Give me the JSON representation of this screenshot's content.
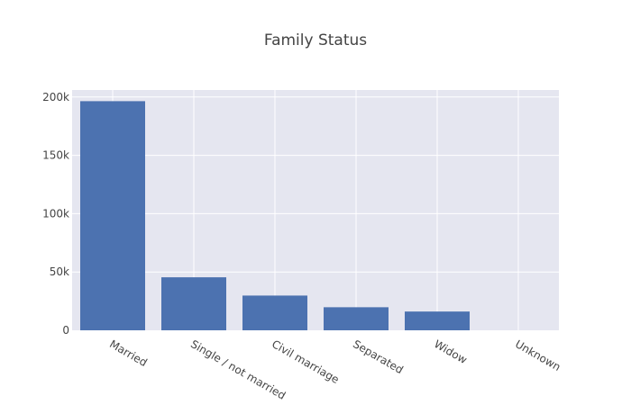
{
  "chart_data": {
    "type": "bar",
    "title": "Family Status",
    "xlabel": "",
    "ylabel": "",
    "categories": [
      "Married",
      "Single / not married",
      "Civil marriage",
      "Separated",
      "Widow",
      "Unknown"
    ],
    "values": [
      196432,
      45444,
      29775,
      19770,
      16088,
      2
    ],
    "ylim": [
      0,
      206000
    ],
    "yticks": [
      0,
      50000,
      100000,
      150000,
      200000
    ],
    "ytick_labels": [
      "0",
      "50k",
      "100k",
      "150k",
      "200k"
    ],
    "grid": true,
    "colors": {
      "bar": "#4c72b0",
      "plot_background": "#e5e6f0",
      "grid": "#ffffff",
      "text": "#444444",
      "title": "#444444"
    }
  }
}
